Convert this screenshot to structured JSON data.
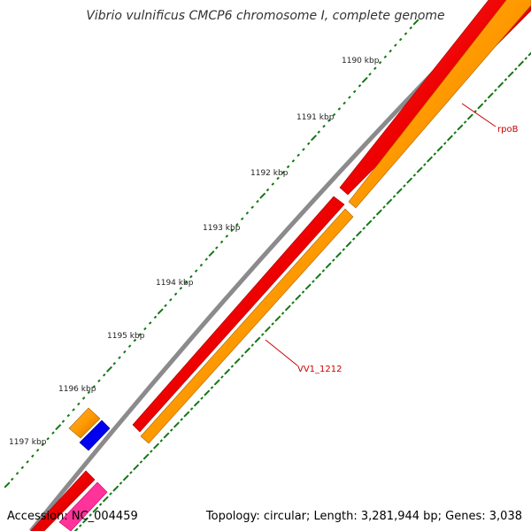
{
  "title": "Vibrio vulnificus CMCP6 chromosome I, complete genome",
  "footer": {
    "accession": "Accession: NC_004459",
    "summary": "Topology: circular; Length: 3,281,944 bp; Genes: 3,038"
  },
  "ticks": [
    {
      "label": "1190 kbp"
    },
    {
      "label": "1191 kbp"
    },
    {
      "label": "1192 kbp"
    },
    {
      "label": "1193 kbp"
    },
    {
      "label": "1194 kbp"
    },
    {
      "label": "1195 kbp"
    },
    {
      "label": "1196 kbp"
    },
    {
      "label": "1197 kbp"
    }
  ],
  "genes": [
    {
      "name": "rpoB"
    },
    {
      "name": "VV1_1212"
    }
  ],
  "colors": {
    "backbone": "#8c8a8c",
    "cds_forward": "#ee0000",
    "cds_reverse": "#ff9900",
    "small_gene_blue": "#0000ee",
    "small_gene_pink": "#ff3399",
    "tick_green": "#117711",
    "label_red": "#cc0000"
  }
}
